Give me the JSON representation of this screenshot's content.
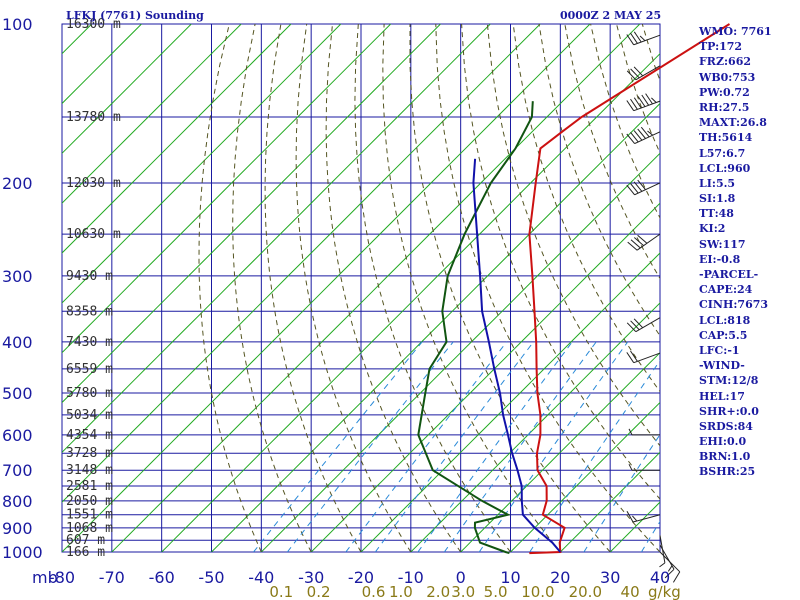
{
  "header": {
    "station": "LFKJ (7761) Sounding",
    "time": "0000Z  2 MAY 25"
  },
  "side_panel": [
    "WMO: 7761",
    "TP:172",
    "FRZ:662",
    "WB0:753",
    "PW:0.72",
    "RH:27.5",
    "MAXT:26.8",
    "TH:5614",
    "L57:6.7",
    "LCL:960",
    "LI:5.5",
    "SI:1.8",
    "TT:48",
    "KI:2",
    "SW:117",
    "EI:-0.8",
    "-PARCEL-",
    "CAPE:24",
    "CINH:7673",
    "LCL:818",
    "CAP:5.5",
    "LFC:-1",
    "-WIND-",
    "STM:12/8",
    "HEL:17",
    "SHR+:0.0",
    "SRDS:84",
    "EHI:0.0",
    "BRN:1.0",
    "BSHR:25"
  ],
  "colors": {
    "grid": "#1a1aa0",
    "isotherm": "#22aa22",
    "dry_adiabat": "#555522",
    "mixing_ratio": "#2a8ad8",
    "temperature": "#cc1111",
    "dewpoint": "#115511",
    "parcel": "#1111aa",
    "wind": "#222222"
  },
  "chart_data": {
    "type": "skew-t log-p sounding",
    "pressure_axis": {
      "unit_label": "mb",
      "range": [
        1000,
        100
      ],
      "scale": "log",
      "ticks": [
        100,
        200,
        300,
        400,
        500,
        600,
        700,
        800,
        900,
        1000
      ]
    },
    "temperature_axis": {
      "range": [
        -80,
        40
      ],
      "ticks": [
        -80,
        -70,
        -60,
        -50,
        -40,
        -30,
        -20,
        -10,
        0,
        10,
        20,
        30,
        40
      ]
    },
    "height_labels": [
      {
        "p": 100,
        "label": "16300 m"
      },
      {
        "p": 150,
        "label": "13780 m"
      },
      {
        "p": 200,
        "label": "12030 m"
      },
      {
        "p": 250,
        "label": "10630 m"
      },
      {
        "p": 300,
        "label": "9430 m"
      },
      {
        "p": 350,
        "label": "8358 m"
      },
      {
        "p": 400,
        "label": "7430 m"
      },
      {
        "p": 450,
        "label": "6559 m"
      },
      {
        "p": 500,
        "label": "5780 m"
      },
      {
        "p": 550,
        "label": "5034 m"
      },
      {
        "p": 600,
        "label": "4354 m"
      },
      {
        "p": 650,
        "label": "3728 m"
      },
      {
        "p": 700,
        "label": "3148 m"
      },
      {
        "p": 750,
        "label": "2581 m"
      },
      {
        "p": 800,
        "label": "2050 m"
      },
      {
        "p": 850,
        "label": "1551 m"
      },
      {
        "p": 900,
        "label": "1068 m"
      },
      {
        "p": 950,
        "label": "607 m"
      },
      {
        "p": 1000,
        "label": "166 m"
      }
    ],
    "mixing_ratio_labels": {
      "unit_label": "g/kg",
      "ticks": [
        {
          "label": "0.1",
          "t": -36
        },
        {
          "label": "0.2",
          "t": -28.5
        },
        {
          "label": "0.6",
          "t": -17.5
        },
        {
          "label": "1.0",
          "t": -12
        },
        {
          "label": "2.0",
          "t": -4.5
        },
        {
          "label": "3.0",
          "t": 0.5
        },
        {
          "label": "5.0",
          "t": 7
        },
        {
          "label": "10.0",
          "t": 15.5
        },
        {
          "label": "20.0",
          "t": 25
        },
        {
          "label": "40",
          "t": 34
        }
      ]
    },
    "series": [
      {
        "points": [
          [
            1005,
            14
          ],
          [
            1000,
            20
          ],
          [
            960,
            18
          ],
          [
            900,
            16
          ],
          [
            850,
            9
          ],
          [
            800,
            7
          ],
          [
            750,
            4
          ],
          [
            700,
            -1
          ],
          [
            650,
            -4.5
          ],
          [
            600,
            -7.5
          ],
          [
            550,
            -11.5
          ],
          [
            500,
            -16.5
          ],
          [
            450,
            -21.5
          ],
          [
            400,
            -27
          ],
          [
            350,
            -33.5
          ],
          [
            300,
            -41
          ],
          [
            250,
            -50
          ],
          [
            200,
            -59
          ],
          [
            172,
            -65
          ],
          [
            160,
            -64
          ],
          [
            150,
            -63
          ],
          [
            100,
            -52
          ]
        ]
      },
      {
        "points": [
          [
            1005,
            10
          ],
          [
            1000,
            9
          ],
          [
            960,
            2
          ],
          [
            900,
            -2
          ],
          [
            880,
            -3
          ],
          [
            850,
            2
          ],
          [
            800,
            -6
          ],
          [
            700,
            -22
          ],
          [
            600,
            -32
          ],
          [
            500,
            -39
          ],
          [
            450,
            -43
          ],
          [
            400,
            -45
          ],
          [
            350,
            -52
          ],
          [
            300,
            -58
          ],
          [
            250,
            -63
          ],
          [
            200,
            -68
          ],
          [
            172,
            -70
          ],
          [
            150,
            -73
          ],
          [
            140,
            -76
          ]
        ]
      },
      {
        "points": [
          [
            1000,
            20
          ],
          [
            960,
            16.5
          ],
          [
            900,
            10
          ],
          [
            850,
            5
          ],
          [
            800,
            2
          ],
          [
            750,
            -1
          ],
          [
            700,
            -5
          ],
          [
            650,
            -9.5
          ],
          [
            600,
            -14
          ],
          [
            550,
            -19
          ],
          [
            500,
            -24
          ],
          [
            450,
            -30
          ],
          [
            400,
            -36.5
          ],
          [
            350,
            -44
          ],
          [
            300,
            -51.5
          ],
          [
            250,
            -60.5
          ],
          [
            200,
            -71.5
          ],
          [
            180,
            -76
          ]
        ]
      }
    ],
    "wind_barbs": [
      {
        "p": 1000,
        "dir": 135,
        "kt": 10
      },
      {
        "p": 970,
        "dir": 150,
        "kt": 15
      },
      {
        "p": 930,
        "dir": 170,
        "kt": 5
      },
      {
        "p": 850,
        "dir": 255,
        "kt": 15
      },
      {
        "p": 700,
        "dir": 270,
        "kt": 5
      },
      {
        "p": 600,
        "dir": 270,
        "kt": 5
      },
      {
        "p": 420,
        "dir": 250,
        "kt": 20
      },
      {
        "p": 360,
        "dir": 240,
        "kt": 30
      },
      {
        "p": 250,
        "dir": 235,
        "kt": 40
      },
      {
        "p": 200,
        "dir": 245,
        "kt": 40
      },
      {
        "p": 160,
        "dir": 245,
        "kt": 55
      },
      {
        "p": 140,
        "dir": 250,
        "kt": 65
      },
      {
        "p": 120,
        "dir": 240,
        "kt": 30
      },
      {
        "p": 105,
        "dir": 250,
        "kt": 35
      }
    ]
  }
}
